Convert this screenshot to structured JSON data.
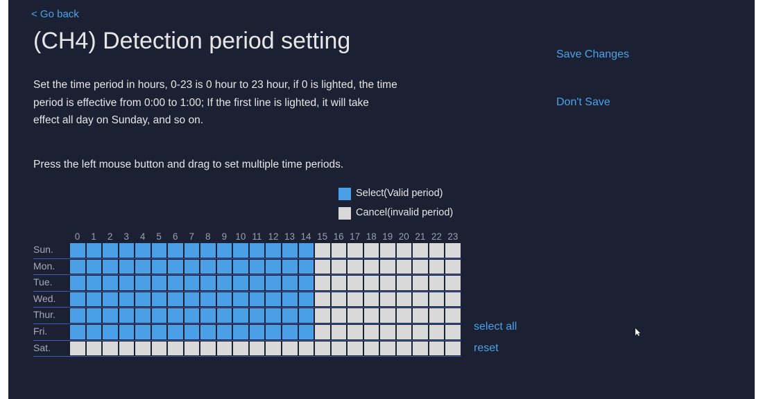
{
  "header": {
    "back": "< Go back",
    "title": "(CH4)  Detection period setting"
  },
  "actions": {
    "save": "Save Changes",
    "discard": "Don't Save"
  },
  "description": [
    "Set the time period in hours, 0-23 is 0 hour to 23 hour, if 0 is lighted, the time",
    "period is effective from 0:00 to 1:00; If the first line is lighted, it will take",
    "effect all day on Sunday, and so on."
  ],
  "instruction": "Press the left mouse button and drag to set multiple time periods.",
  "legend": [
    {
      "label": "Select(Valid period)",
      "color": "#4a9fe6"
    },
    {
      "label": "Cancel(invalid period)",
      "color": "#d9d9d9"
    }
  ],
  "hours": [
    0,
    1,
    2,
    3,
    4,
    5,
    6,
    7,
    8,
    9,
    10,
    11,
    12,
    13,
    14,
    15,
    16,
    17,
    18,
    19,
    20,
    21,
    22,
    23
  ],
  "days": [
    "Sun.",
    "Mon.",
    "Tue.",
    "Wed.",
    "Thur.",
    "Fri.",
    "Sat."
  ],
  "schedule": [
    [
      1,
      1,
      1,
      1,
      1,
      1,
      1,
      1,
      1,
      1,
      1,
      1,
      1,
      1,
      1,
      0,
      0,
      0,
      0,
      0,
      0,
      0,
      0,
      0
    ],
    [
      1,
      1,
      1,
      1,
      1,
      1,
      1,
      1,
      1,
      1,
      1,
      1,
      1,
      1,
      1,
      0,
      0,
      0,
      0,
      0,
      0,
      0,
      0,
      0
    ],
    [
      1,
      1,
      1,
      1,
      1,
      1,
      1,
      1,
      1,
      1,
      1,
      1,
      1,
      1,
      1,
      0,
      0,
      0,
      0,
      0,
      0,
      0,
      0,
      0
    ],
    [
      1,
      1,
      1,
      1,
      1,
      1,
      1,
      1,
      1,
      1,
      1,
      1,
      1,
      1,
      1,
      0,
      0,
      0,
      0,
      0,
      0,
      0,
      0,
      0
    ],
    [
      1,
      1,
      1,
      1,
      1,
      1,
      1,
      1,
      1,
      1,
      1,
      1,
      1,
      1,
      1,
      0,
      0,
      0,
      0,
      0,
      0,
      0,
      0,
      0
    ],
    [
      1,
      1,
      1,
      1,
      1,
      1,
      1,
      1,
      1,
      1,
      1,
      1,
      1,
      1,
      1,
      0,
      0,
      0,
      0,
      0,
      0,
      0,
      0,
      0
    ],
    [
      0,
      0,
      0,
      0,
      0,
      0,
      0,
      0,
      0,
      0,
      0,
      0,
      0,
      0,
      0,
      0,
      0,
      0,
      0,
      0,
      0,
      0,
      0,
      0
    ]
  ],
  "grid_actions": {
    "select_all": "select all",
    "reset": "reset"
  }
}
